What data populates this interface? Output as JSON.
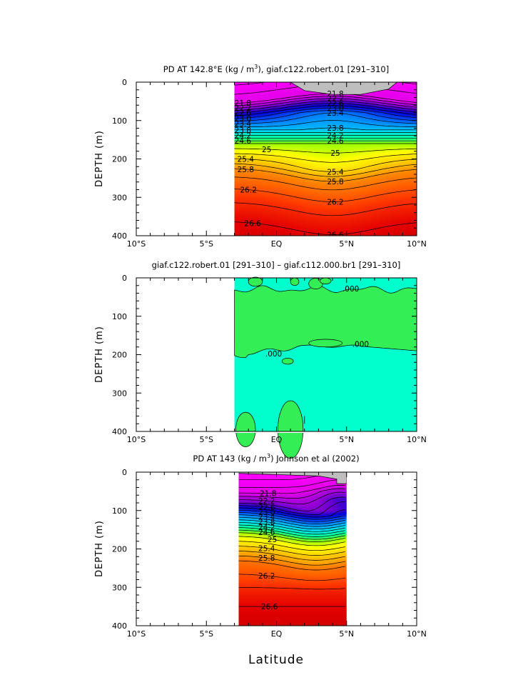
{
  "chart_data": [
    {
      "type": "heatmap",
      "title_pre": "PD AT 142.8°E (kg / m",
      "title_sup": "3",
      "title_post": "), giaf.c122.robert.01 [291–310]",
      "ylabel": "DEPTH (m)",
      "xlabel": "",
      "x_ticks": [
        "10°S",
        "5°S",
        "EQ",
        "5°N",
        "10°N"
      ],
      "x_tick_values": [
        -10,
        -5,
        0,
        5,
        10
      ],
      "y_ticks": [
        "0",
        "100",
        "200",
        "300",
        "400"
      ],
      "y_tick_values": [
        0,
        100,
        200,
        300,
        400
      ],
      "xlim": [
        -10,
        10
      ],
      "ylim": [
        400,
        0
      ],
      "data_xlim": [
        -3,
        10
      ],
      "cap_depth": 0,
      "field": {
        "base": [
          [
            0,
            21.3
          ],
          [
            60,
            21.8
          ],
          [
            85,
            22.6
          ],
          [
            110,
            23.4
          ],
          [
            160,
            24.8
          ],
          [
            230,
            25.9
          ],
          [
            300,
            26.35
          ],
          [
            400,
            26.75
          ]
        ],
        "bumps": [
          {
            "x0": 4,
            "width": 5,
            "amp": -30,
            "from": 0,
            "to": 80,
            "fade": 40
          },
          {
            "x0": 4,
            "width": 4,
            "amp": 35,
            "from": 220,
            "to": 400,
            "fade": 60
          }
        ]
      },
      "land": [
        {
          "pts": [
            [
              1,
              0
            ],
            [
              2,
              22
            ],
            [
              4,
              32
            ],
            [
              6,
              32
            ],
            [
              8,
              18
            ],
            [
              8.6,
              0
            ]
          ]
        }
      ],
      "levels": [
        21.4,
        21.6,
        21.8,
        22.0,
        22.2,
        22.4,
        22.6,
        22.8,
        23.0,
        23.2,
        23.4,
        23.6,
        23.8,
        24.0,
        24.2,
        24.4,
        24.6,
        24.8,
        25.0,
        25.2,
        25.4,
        25.6,
        25.8,
        26.0,
        26.2,
        26.4,
        26.6,
        26.8
      ],
      "labels": [
        {
          "x": 3.2,
          "level": 21.4,
          "text": "21.4"
        },
        {
          "x": -2.4,
          "level": 21.8,
          "text": "21.8"
        },
        {
          "x": 4.2,
          "level": 21.8,
          "text": "21.8"
        },
        {
          "x": -2.4,
          "level": 22.2,
          "text": "22.2"
        },
        {
          "x": 4.2,
          "level": 22.2,
          "text": "22.2"
        },
        {
          "x": -2.4,
          "level": 22.6,
          "text": "22.6"
        },
        {
          "x": 4.2,
          "level": 22.6,
          "text": "22.6"
        },
        {
          "x": -2.4,
          "level": 23.0,
          "text": "23.0"
        },
        {
          "x": 4.2,
          "level": 23.0,
          "text": "23.0"
        },
        {
          "x": -2.4,
          "level": 23.4,
          "text": "23.4"
        },
        {
          "x": 4.2,
          "level": 23.4,
          "text": "23.4"
        },
        {
          "x": -2.4,
          "level": 23.8,
          "text": "23.8"
        },
        {
          "x": 4.2,
          "level": 23.8,
          "text": "23.8"
        },
        {
          "x": -2.4,
          "level": 24.2,
          "text": "24.2"
        },
        {
          "x": 4.2,
          "level": 24.2,
          "text": "24.2"
        },
        {
          "x": -2.4,
          "level": 24.6,
          "text": "24.6"
        },
        {
          "x": 4.2,
          "level": 24.6,
          "text": "24.6"
        },
        {
          "x": -0.7,
          "level": 25.0,
          "text": "25"
        },
        {
          "x": 4.2,
          "level": 25.0,
          "text": "25"
        },
        {
          "x": -2.2,
          "level": 25.4,
          "text": "25.4"
        },
        {
          "x": 4.2,
          "level": 25.4,
          "text": "25.4"
        },
        {
          "x": -2.2,
          "level": 25.8,
          "text": "25.8"
        },
        {
          "x": 4.2,
          "level": 25.8,
          "text": "25.8"
        },
        {
          "x": -2.0,
          "level": 26.2,
          "text": "26.2"
        },
        {
          "x": 4.2,
          "level": 26.2,
          "text": "26.2"
        },
        {
          "x": 4.2,
          "level": 26.6,
          "text": "26.6"
        },
        {
          "x": -1.7,
          "level": 26.6,
          "text": "26.6"
        }
      ]
    },
    {
      "type": "heatmap",
      "title_pre": "giaf.c122.robert.01 [291–310] – giaf.c112.000.br1 [291–310]",
      "title_sup": "",
      "title_post": "",
      "ylabel": "DEPTH (m)",
      "xlabel": "",
      "x_ticks": [
        "10°S",
        "5°S",
        "EQ",
        "5°N",
        "10°N"
      ],
      "x_tick_values": [
        -10,
        -5,
        0,
        5,
        10
      ],
      "y_ticks": [
        "0",
        "100",
        "200",
        "300",
        "400"
      ],
      "y_tick_values": [
        0,
        100,
        200,
        300,
        400
      ],
      "xlim": [
        -10,
        10
      ],
      "ylim": [
        400,
        0
      ],
      "data_xlim": [
        -3,
        10
      ],
      "positive_color": "#33ee55",
      "negative_color": "#00ffcc",
      "zero_label": ".000",
      "zero_labels": [
        {
          "x": 5.3,
          "depth": 28
        },
        {
          "x": 6.0,
          "depth": 172
        },
        {
          "x": -0.2,
          "depth": 197
        }
      ]
    },
    {
      "type": "heatmap",
      "title_pre": "PD AT 143 (kg / m",
      "title_sup": "3",
      "title_post": ") Johnson et al (2002)",
      "ylabel": "DEPTH (m)",
      "xlabel": "Latitude",
      "x_ticks": [
        "10°S",
        "5°S",
        "EQ",
        "5°N",
        "10°N"
      ],
      "x_tick_values": [
        -10,
        -5,
        0,
        5,
        10
      ],
      "y_ticks": [
        "0",
        "100",
        "200",
        "300",
        "400"
      ],
      "y_tick_values": [
        0,
        100,
        200,
        300,
        400
      ],
      "xlim": [
        -10,
        10
      ],
      "ylim": [
        400,
        0
      ],
      "data_xlim": [
        -2.7,
        5
      ],
      "cap_depth": 0,
      "field": {
        "base": [
          [
            0,
            21.2
          ],
          [
            50,
            21.7
          ],
          [
            80,
            22.4
          ],
          [
            110,
            23.4
          ],
          [
            160,
            24.9
          ],
          [
            230,
            26.0
          ],
          [
            300,
            26.4
          ],
          [
            400,
            26.8
          ]
        ],
        "bumps": [
          {
            "x0": 2.8,
            "width": 3,
            "amp": 25,
            "from": 100,
            "to": 260,
            "fade": 50
          },
          {
            "x0": 4.5,
            "width": 2,
            "amp": -20,
            "from": 0,
            "to": 70,
            "fade": 30
          }
        ]
      },
      "land": [
        {
          "pts": [
            [
              -2.7,
              0
            ],
            [
              5,
              0
            ],
            [
              5,
              30
            ],
            [
              4.3,
              30
            ],
            [
              4.3,
              18
            ],
            [
              3.0,
              10
            ],
            [
              -2.7,
              3
            ]
          ]
        }
      ],
      "levels": [
        21.4,
        21.6,
        21.8,
        22.0,
        22.2,
        22.4,
        22.6,
        22.8,
        23.0,
        23.2,
        23.4,
        23.6,
        23.8,
        24.0,
        24.2,
        24.4,
        24.6,
        24.8,
        25.0,
        25.2,
        25.4,
        25.6,
        25.8,
        26.0,
        26.2,
        26.4,
        26.6
      ],
      "labels": [
        {
          "x": -0.6,
          "level": 21.8,
          "text": "21.8"
        },
        {
          "x": -0.7,
          "level": 22.2,
          "text": "22.2"
        },
        {
          "x": -0.7,
          "level": 22.6,
          "text": "22.6"
        },
        {
          "x": -0.7,
          "level": 23.0,
          "text": "23.0"
        },
        {
          "x": -0.7,
          "level": 23.4,
          "text": "23.4"
        },
        {
          "x": -0.7,
          "level": 23.8,
          "text": "23.8"
        },
        {
          "x": -0.7,
          "level": 24.2,
          "text": "24.2"
        },
        {
          "x": -0.7,
          "level": 24.6,
          "text": "24.6"
        },
        {
          "x": -0.3,
          "level": 25.0,
          "text": "25"
        },
        {
          "x": -0.7,
          "level": 25.4,
          "text": "25.4"
        },
        {
          "x": -0.7,
          "level": 25.8,
          "text": "25.8"
        },
        {
          "x": -0.7,
          "level": 26.2,
          "text": "26.2"
        },
        {
          "x": -0.5,
          "level": 26.6,
          "text": "26.6"
        }
      ]
    }
  ],
  "palette": {
    "stops": [
      [
        21.3,
        "#ff00ff"
      ],
      [
        21.8,
        "#e200e8"
      ],
      [
        22.2,
        "#9900d6"
      ],
      [
        22.5,
        "#4400cc"
      ],
      [
        22.8,
        "#0000d0"
      ],
      [
        23.2,
        "#0050ff"
      ],
      [
        23.6,
        "#00a8ff"
      ],
      [
        24.0,
        "#00e6e6"
      ],
      [
        24.4,
        "#00ff99"
      ],
      [
        24.8,
        "#99ff00"
      ],
      [
        25.1,
        "#ffff00"
      ],
      [
        25.4,
        "#ffd400"
      ],
      [
        25.7,
        "#ffa500"
      ],
      [
        26.0,
        "#ff7300"
      ],
      [
        26.3,
        "#ff3c00"
      ],
      [
        26.6,
        "#e40000"
      ],
      [
        26.9,
        "#cc0000"
      ]
    ],
    "land_color": "#bebebe"
  }
}
